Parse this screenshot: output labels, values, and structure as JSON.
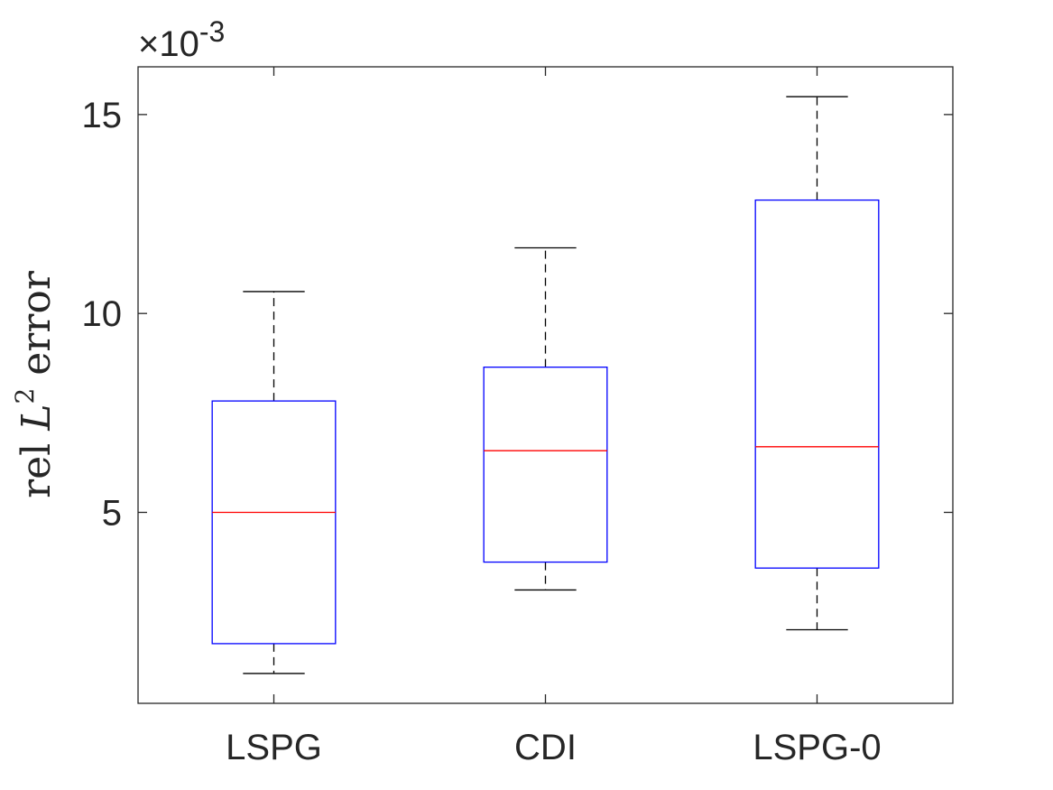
{
  "chart_data": {
    "type": "boxplot",
    "title": "",
    "xlabel": "",
    "ylabel": {
      "prefix": "rel ",
      "var": "L",
      "sup": "2",
      "suffix": " error"
    },
    "scale_exponent": {
      "times": "×10",
      "exp": "-3"
    },
    "categories": [
      "LSPG",
      "CDI",
      "LSPG-0"
    ],
    "ylim": [
      0.2,
      16.2
    ],
    "yticks": [
      5,
      10,
      15
    ],
    "ytick_labels": [
      "5",
      "10",
      "15"
    ],
    "boxes": [
      {
        "name": "LSPG",
        "whisker_low": 0.95,
        "q1": 1.7,
        "median": 5.0,
        "q3": 7.8,
        "whisker_high": 10.55
      },
      {
        "name": "CDI",
        "whisker_low": 3.05,
        "q1": 3.75,
        "median": 6.55,
        "q3": 8.65,
        "whisker_high": 11.65
      },
      {
        "name": "LSPG-0",
        "whisker_low": 2.05,
        "q1": 3.6,
        "median": 6.65,
        "q3": 12.85,
        "whisker_high": 15.45
      }
    ],
    "colors": {
      "box": "#0000ff",
      "median": "#ff0000",
      "whisker": "#000000",
      "axis": "#262626"
    },
    "grid": false,
    "legend": "none"
  }
}
